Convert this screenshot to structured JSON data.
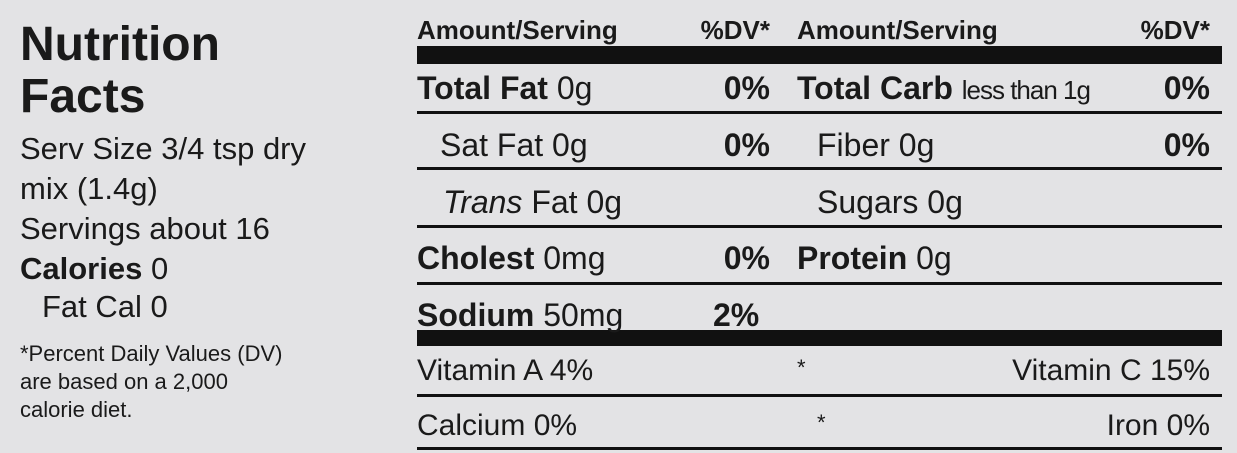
{
  "left": {
    "title": [
      "Nutrition",
      "Facts"
    ],
    "serving": [
      "Serv Size 3/4 tsp dry",
      "mix (1.4g)"
    ],
    "servings": "Servings about 16",
    "calories": {
      "label": "Calories",
      "value": "0"
    },
    "fat_cal": "Fat Cal 0",
    "footnote": [
      "*Percent Daily Values (DV)",
      "are based on a 2,000",
      "calorie diet."
    ]
  },
  "header": [
    "Amount/Serving",
    "%DV*",
    "Amount/Serving",
    "%DV*"
  ],
  "rows": [
    {
      "left": {
        "name": "Total Fat",
        "amount": "0g",
        "dv": "0%"
      },
      "right": {
        "name": "Total Carb",
        "amount": "less than 1g",
        "dv": "0%"
      }
    },
    {
      "left": {
        "name": "Sat Fat 0g",
        "dv": "0%"
      },
      "right": {
        "name": "Fiber 0g",
        "dv": "0%"
      }
    },
    {
      "left": {
        "name_italic": "Trans",
        "name": "Fat 0g"
      },
      "right": {
        "name": "Sugars 0g"
      }
    },
    {
      "left": {
        "name": "Cholest",
        "amount": "0mg",
        "dv": "0%"
      },
      "right": {
        "name": "Protein",
        "amount": "0g"
      }
    },
    {
      "left": {
        "name": "Sodium",
        "amount": "50mg",
        "dv": "2%"
      }
    }
  ],
  "vitamins": [
    {
      "left": "Vitamin A 4%",
      "sep": "*",
      "right": "Vitamin C 15%"
    },
    {
      "left": "Calcium 0%",
      "sep": "*",
      "right": "Iron 0%"
    }
  ]
}
